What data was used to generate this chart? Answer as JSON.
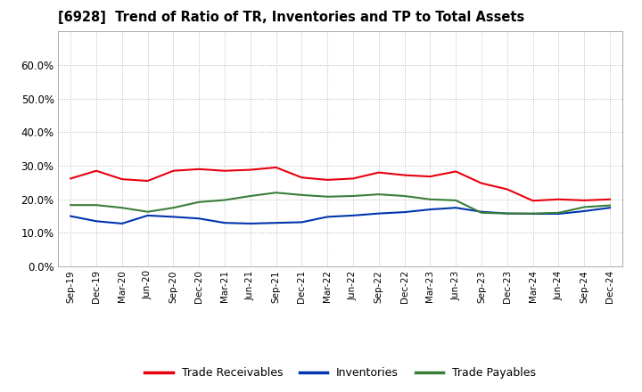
{
  "title": "[6928]  Trend of Ratio of TR, Inventories and TP to Total Assets",
  "x_labels": [
    "Sep-19",
    "Dec-19",
    "Mar-20",
    "Jun-20",
    "Sep-20",
    "Dec-20",
    "Mar-21",
    "Jun-21",
    "Sep-21",
    "Dec-21",
    "Mar-22",
    "Jun-22",
    "Sep-22",
    "Dec-22",
    "Mar-23",
    "Jun-23",
    "Sep-23",
    "Dec-23",
    "Mar-24",
    "Jun-24",
    "Sep-24",
    "Dec-24"
  ],
  "trade_receivables": [
    0.262,
    0.285,
    0.26,
    0.255,
    0.285,
    0.29,
    0.285,
    0.288,
    0.295,
    0.265,
    0.258,
    0.262,
    0.28,
    0.272,
    0.268,
    0.283,
    0.248,
    0.23,
    0.196,
    0.2,
    0.197,
    0.2
  ],
  "inventories": [
    0.15,
    0.135,
    0.128,
    0.152,
    0.148,
    0.143,
    0.13,
    0.128,
    0.13,
    0.132,
    0.148,
    0.152,
    0.158,
    0.162,
    0.17,
    0.175,
    0.163,
    0.158,
    0.157,
    0.157,
    0.165,
    0.175
  ],
  "trade_payables": [
    0.183,
    0.183,
    0.175,
    0.163,
    0.175,
    0.192,
    0.198,
    0.21,
    0.22,
    0.213,
    0.208,
    0.21,
    0.215,
    0.21,
    0.2,
    0.197,
    0.16,
    0.158,
    0.158,
    0.16,
    0.177,
    0.182
  ],
  "ylim": [
    0.0,
    0.7
  ],
  "yticks": [
    0.0,
    0.1,
    0.2,
    0.3,
    0.4,
    0.5,
    0.6
  ],
  "line_colors": {
    "trade_receivables": "#e8000d",
    "inventories": "#0035ad",
    "trade_payables": "#3a7d3a"
  },
  "legend_labels": [
    "Trade Receivables",
    "Inventories",
    "Trade Payables"
  ],
  "background_color": "#ffffff",
  "grid_color": "#aaaaaa"
}
